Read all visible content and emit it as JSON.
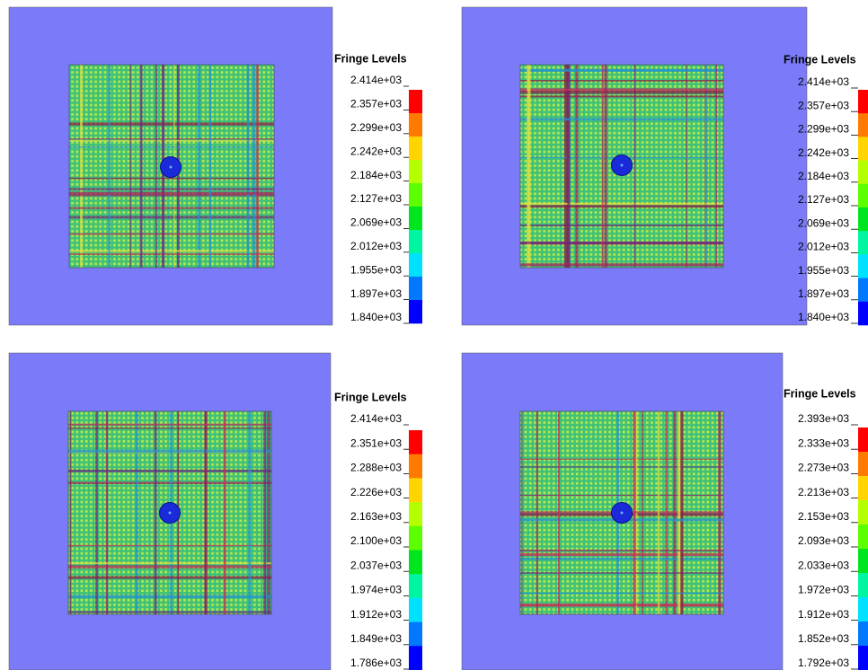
{
  "panels": [
    {
      "legend": {
        "title": "Fringe Levels",
        "levels": [
          "2.414e+03",
          "2.357e+03",
          "2.299e+03",
          "2.242e+03",
          "2.184e+03",
          "2.127e+03",
          "2.069e+03",
          "2.012e+03",
          "1.955e+03",
          "1.897e+03",
          "1.840e+03"
        ]
      }
    },
    {
      "legend": {
        "title": "Fringe Levels",
        "levels": [
          "2.414e+03",
          "2.357e+03",
          "2.299e+03",
          "2.242e+03",
          "2.184e+03",
          "2.127e+03",
          "2.069e+03",
          "2.012e+03",
          "1.955e+03",
          "1.897e+03",
          "1.840e+03"
        ]
      }
    },
    {
      "legend": {
        "title": "Fringe Levels",
        "levels": [
          "2.414e+03",
          "2.351e+03",
          "2.288e+03",
          "2.226e+03",
          "2.163e+03",
          "2.100e+03",
          "2.037e+03",
          "1.974e+03",
          "1.912e+03",
          "1.849e+03",
          "1.786e+03"
        ]
      }
    },
    {
      "legend": {
        "title": "Fringe Levels",
        "levels": [
          "2.393e+03",
          "2.333e+03",
          "2.273e+03",
          "2.213e+03",
          "2.153e+03",
          "2.093e+03",
          "2.033e+03",
          "1.972e+03",
          "1.912e+03",
          "1.852e+03",
          "1.792e+03"
        ]
      }
    }
  ]
}
